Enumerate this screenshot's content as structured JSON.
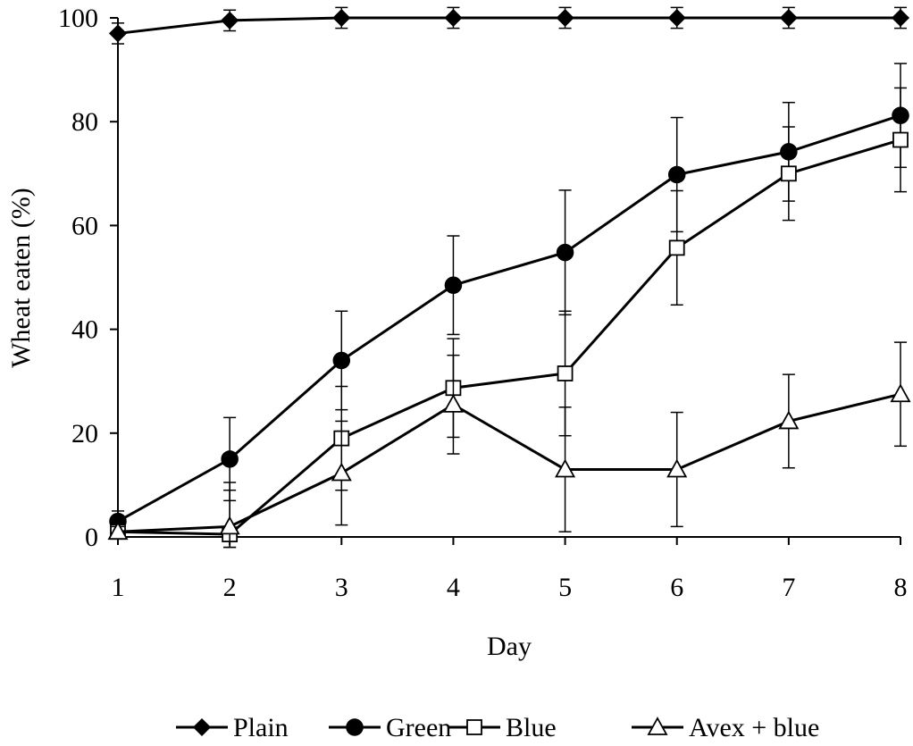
{
  "chart_data": {
    "type": "line",
    "title": "",
    "xlabel": "Day",
    "ylabel": "Wheat eaten (%)",
    "x": [
      1,
      2,
      3,
      4,
      5,
      6,
      7,
      8
    ],
    "ylim": [
      0,
      100
    ],
    "yticks": [
      0,
      20,
      40,
      60,
      80,
      100
    ],
    "grid": false,
    "legend_position": "bottom",
    "series": [
      {
        "name": "Plain",
        "marker": "diamond-filled",
        "values": [
          97,
          99.5,
          100,
          100,
          100,
          100,
          100,
          100
        ],
        "error": [
          2,
          2,
          2,
          2,
          2,
          2,
          2,
          2
        ]
      },
      {
        "name": "Green",
        "marker": "circle-filled",
        "values": [
          3,
          15,
          34,
          48.5,
          54.8,
          69.8,
          74.2,
          81.2
        ],
        "error": [
          2,
          8,
          9.5,
          9.5,
          12,
          11,
          9.5,
          10
        ]
      },
      {
        "name": "Blue",
        "marker": "square-open",
        "values": [
          1,
          0.5,
          19,
          28.7,
          31.5,
          55.7,
          70,
          76.5
        ],
        "error": [
          0.5,
          10,
          10,
          9.5,
          12,
          11,
          9,
          10
        ]
      },
      {
        "name": "Avex + blue",
        "marker": "triangle-open",
        "values": [
          1,
          2,
          12.3,
          25.5,
          13,
          13,
          22.3,
          27.5
        ],
        "error": [
          1,
          7,
          10,
          9.5,
          12,
          11,
          9,
          10
        ]
      }
    ],
    "colors": {
      "line": "#000000",
      "marker_fill_open": "#ffffff"
    }
  }
}
